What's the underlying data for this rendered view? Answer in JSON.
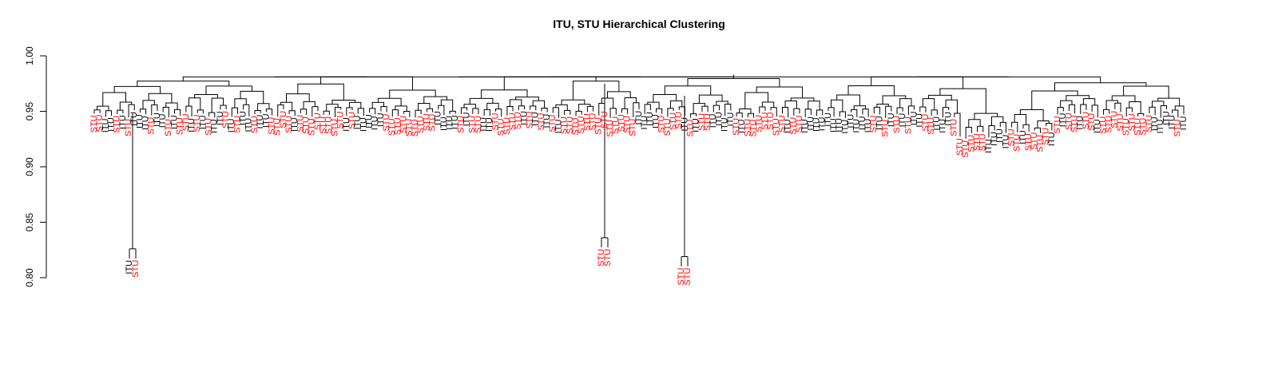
{
  "chart_data": {
    "type": "dendrogram",
    "title": "ITU, STU Hierarchical Clustering",
    "xlabel": "",
    "ylabel": "",
    "ylim": [
      0.8,
      1.0
    ],
    "y_ticks": [
      "0.80",
      "0.85",
      "0.90",
      "0.95",
      "1.00"
    ],
    "grid": false,
    "leaf_colors": {
      "ITU": "#000000",
      "STU": "#ff0000"
    },
    "root_height": 0.983,
    "outliers": [
      {
        "labels": [
          "ITU",
          "STU"
        ],
        "merge_height": 0.826,
        "join_height": 0.948
      },
      {
        "labels": [
          "STU",
          "STU"
        ],
        "merge_height": 0.836,
        "join_height": 0.975
      },
      {
        "labels": [
          "STU",
          "STU"
        ],
        "merge_height": 0.819,
        "join_height": 0.964
      }
    ],
    "leaves": [
      "STU",
      "STU",
      "ITU",
      "ITU",
      "STU",
      "ITU",
      "STU",
      "ITU",
      "ITU",
      "ITU",
      "STU",
      "ITU",
      "ITU",
      "STU",
      "ITU",
      "STU",
      "STU",
      "ITU",
      "STU",
      "ITU",
      "STU",
      "ITU",
      "ITU",
      "STU",
      "ITU",
      "STU",
      "ITU",
      "ITU",
      "STU",
      "ITU",
      "ITU",
      "STU",
      "STU",
      "STU",
      "STU",
      "ITU",
      "STU",
      "STU",
      "STU",
      "STU",
      "STU",
      "STU",
      "STU",
      "STU",
      "ITU",
      "STU",
      "ITU",
      "ITU",
      "ITU",
      "ITU",
      "ITU",
      "STU",
      "STU",
      "STU",
      "STU",
      "STU",
      "STU",
      "STU",
      "STU",
      "STU",
      "ITU",
      "ITU",
      "ITU",
      "ITU",
      "STU",
      "ITU",
      "STU",
      "STU",
      "ITU",
      "ITU",
      "STU",
      "STU",
      "STU",
      "STU",
      "STU",
      "ITU",
      "STU",
      "ITU",
      "STU",
      "ITU",
      "STU",
      "ITU",
      "STU",
      "STU",
      "STU",
      "STU",
      "STU",
      "STU",
      "STU",
      "STU",
      "STU",
      "STU",
      "STU",
      "STU",
      "STU",
      "ITU",
      "ITU",
      "ITU",
      "ITU",
      "STU",
      "STU",
      "STU",
      "STU",
      "ITU",
      "STU",
      "ITU",
      "STU",
      "STU",
      "ITU",
      "ITU",
      "ITU",
      "ITU",
      "STU",
      "ITU",
      "STU",
      "STU",
      "STU",
      "STU",
      "STU",
      "STU",
      "STU",
      "ITU",
      "STU",
      "STU",
      "ITU",
      "ITU",
      "ITU",
      "ITU",
      "ITU",
      "ITU",
      "ITU",
      "ITU",
      "ITU",
      "ITU",
      "ITU",
      "ITU",
      "STU",
      "ITU",
      "STU",
      "ITU",
      "STU",
      "ITU",
      "STU",
      "ITU",
      "ITU",
      "STU",
      "STU",
      "ITU",
      "ITU",
      "ITU",
      "STU",
      "STU",
      "STU",
      "STU",
      "STU",
      "STU",
      "ITU",
      "ITU",
      "ITU",
      "ITU",
      "STU",
      "STU",
      "ITU",
      "STU",
      "STU",
      "STU",
      "STU",
      "ITU",
      "STU",
      "ITU",
      "STU",
      "STU",
      "ITU",
      "STU",
      "STU",
      "ITU",
      "STU",
      "STU",
      "STU",
      "STU",
      "STU",
      "STU",
      "STU",
      "STU",
      "STU",
      "ITU",
      "ITU",
      "ITU",
      "ITU",
      "STU",
      "ITU"
    ]
  }
}
